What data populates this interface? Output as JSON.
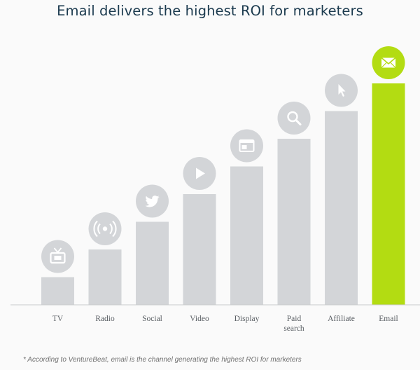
{
  "chart_data": {
    "type": "bar",
    "title": "Email delivers the highest ROI for marketers",
    "categories": [
      "TV",
      "Radio",
      "Social",
      "Video",
      "Display",
      "Paid search",
      "Affiliate",
      "Email"
    ],
    "category_lines": [
      [
        "TV"
      ],
      [
        "Radio"
      ],
      [
        "Social"
      ],
      [
        "Video"
      ],
      [
        "Display"
      ],
      [
        "Paid",
        "search"
      ],
      [
        "Affiliate"
      ],
      [
        "Email"
      ]
    ],
    "values": [
      1,
      2,
      3,
      4,
      5,
      6,
      7,
      8
    ],
    "ylim": [
      0,
      8
    ],
    "icons": [
      "tv-icon",
      "radio-icon",
      "twitter-icon",
      "play-icon",
      "display-icon",
      "search-icon",
      "cursor-icon",
      "mail-icon"
    ],
    "highlight_index": 7,
    "colors": {
      "bar": "#d3d5d8",
      "highlight": "#b3dc12",
      "icon_bg": "#d3d5d8",
      "axis": "#c8cacc"
    },
    "grid": false,
    "legend": "none",
    "footnote": "* According to VentureBeat, email is the channel generating the highest ROI for marketers"
  }
}
